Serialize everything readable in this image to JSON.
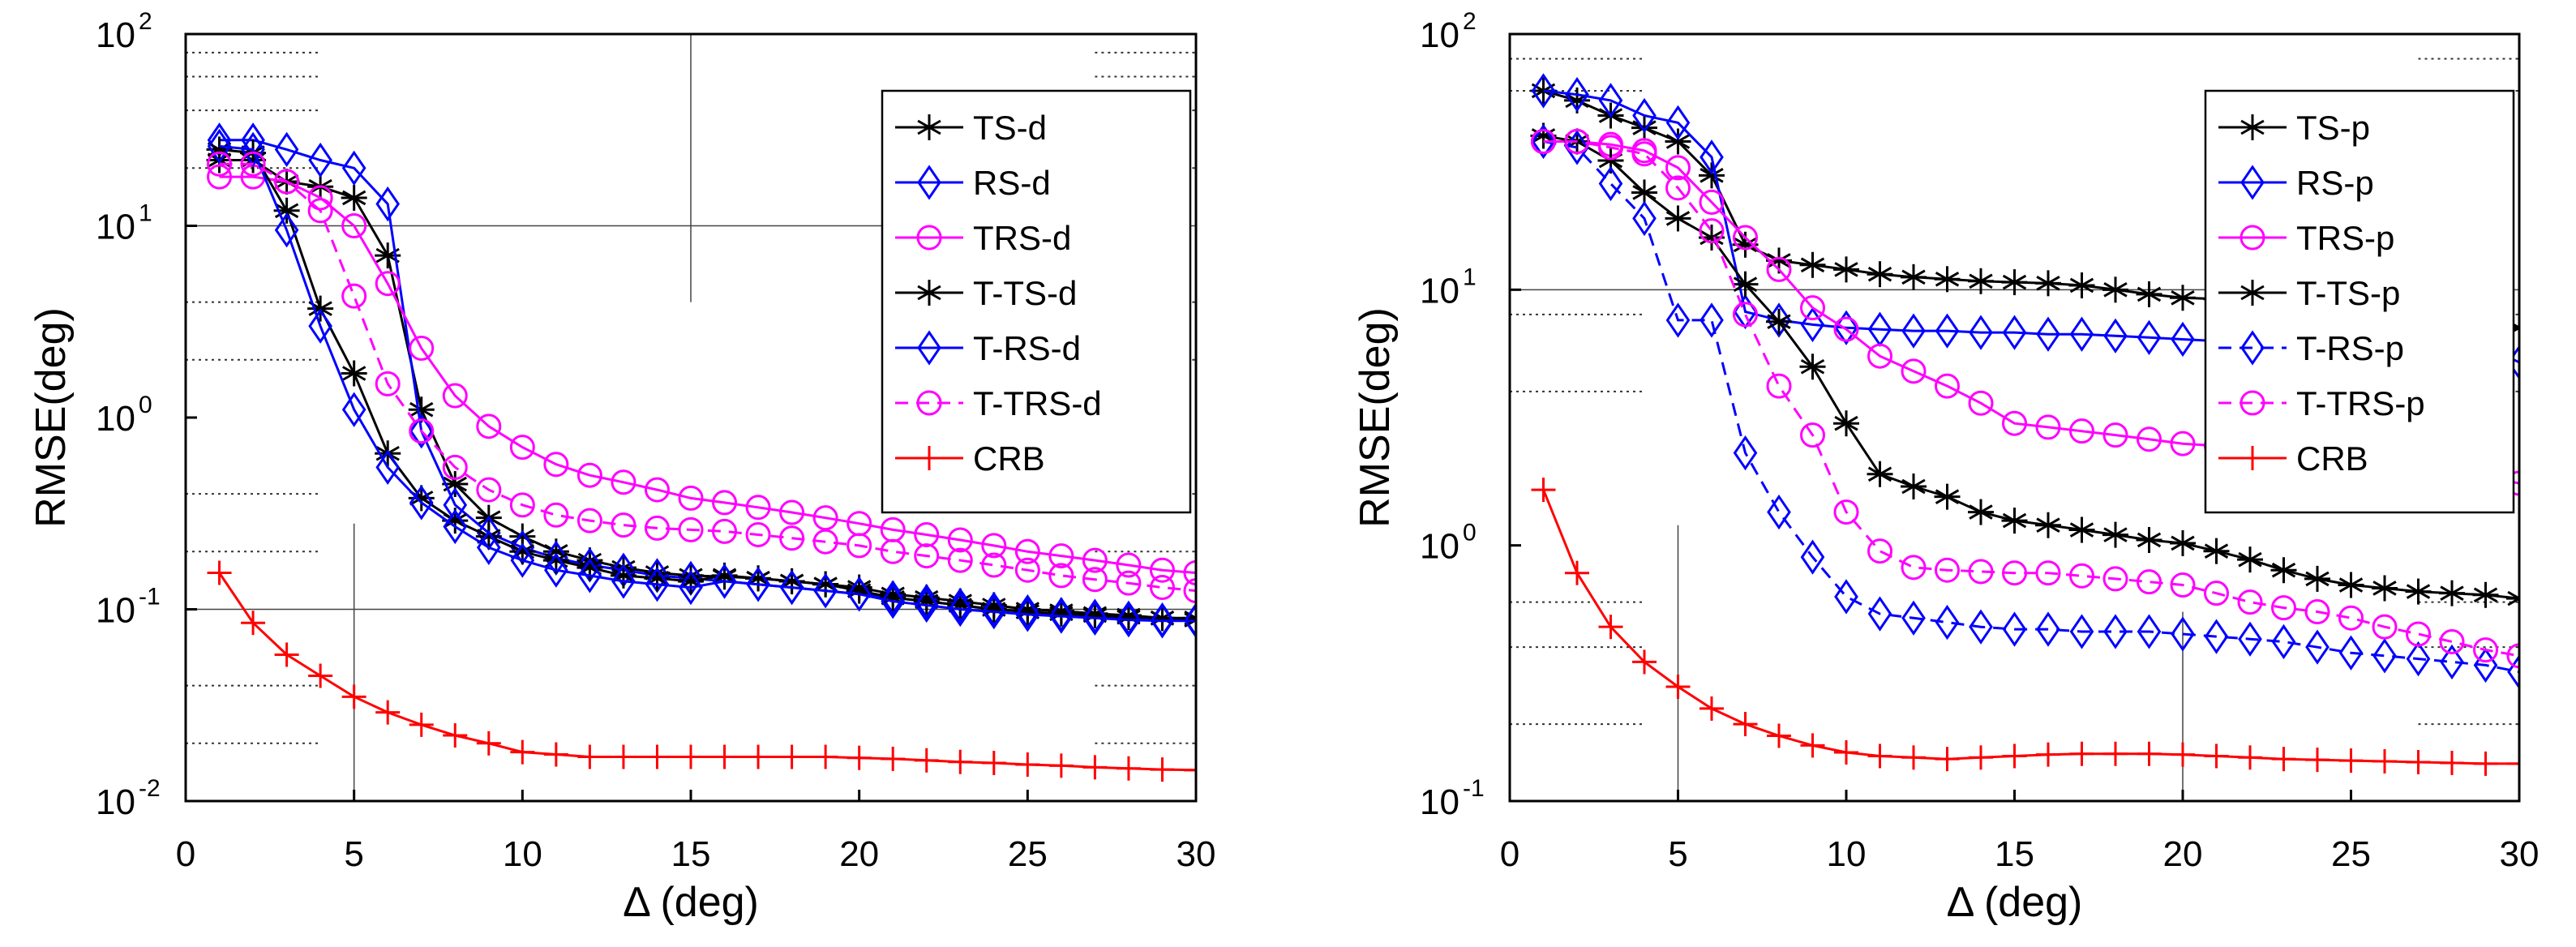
{
  "chart_data": [
    {
      "type": "line",
      "yscale": "log",
      "xlabel": "Δ (deg)",
      "ylabel": "RMSE(deg)",
      "xlim": [
        0,
        30
      ],
      "ylim": [
        0.01,
        100
      ],
      "xticks": [
        "0",
        "5",
        "10",
        "15",
        "20",
        "25",
        "30"
      ],
      "yticks": [
        {
          "base": "10",
          "exp": "-2"
        },
        {
          "base": "10",
          "exp": "-1"
        },
        {
          "base": "10",
          "exp": "0"
        },
        {
          "base": "10",
          "exp": "1"
        },
        {
          "base": "10",
          "exp": "2"
        }
      ],
      "legend_position": "top-right",
      "series": [
        {
          "name": "TS-d",
          "color": "#000000",
          "marker": "asterisk",
          "dash": "solid",
          "x": [
            1,
            2,
            3,
            4,
            5,
            6,
            7,
            8,
            9,
            10,
            11,
            12,
            13,
            14,
            15,
            16,
            17,
            18,
            19,
            20,
            21,
            22,
            23,
            24,
            25,
            26,
            27,
            28,
            29,
            30
          ],
          "values": [
            22,
            22,
            17,
            16,
            14,
            7,
            1.1,
            0.45,
            0.3,
            0.24,
            0.2,
            0.18,
            0.165,
            0.155,
            0.15,
            0.148,
            0.145,
            0.14,
            0.135,
            0.13,
            0.12,
            0.115,
            0.11,
            0.105,
            0.1,
            0.098,
            0.095,
            0.093,
            0.09,
            0.09
          ]
        },
        {
          "name": "RS-d",
          "color": "#0000ff",
          "marker": "diamond",
          "dash": "solid",
          "x": [
            1,
            2,
            3,
            4,
            5,
            6,
            7,
            8,
            9,
            10,
            11,
            12,
            13,
            14,
            15,
            16,
            17,
            18,
            19,
            20,
            21,
            22,
            23,
            24,
            25,
            26,
            27,
            28,
            29,
            30
          ],
          "values": [
            28,
            28,
            25,
            22,
            20,
            13,
            0.85,
            0.35,
            0.25,
            0.21,
            0.185,
            0.17,
            0.16,
            0.15,
            0.145,
            0.14,
            0.135,
            0.13,
            0.125,
            0.12,
            0.115,
            0.11,
            0.105,
            0.1,
            0.097,
            0.094,
            0.092,
            0.09,
            0.088,
            0.088
          ]
        },
        {
          "name": "TRS-d",
          "color": "#ff00ff",
          "marker": "circle",
          "dash": "solid",
          "x": [
            1,
            2,
            3,
            4,
            5,
            6,
            7,
            8,
            9,
            10,
            11,
            12,
            13,
            14,
            15,
            16,
            17,
            18,
            19,
            20,
            21,
            22,
            23,
            24,
            25,
            26,
            27,
            28,
            29,
            30
          ],
          "values": [
            18,
            18,
            17,
            14,
            10,
            5,
            2.3,
            1.3,
            0.9,
            0.7,
            0.57,
            0.5,
            0.46,
            0.42,
            0.38,
            0.36,
            0.34,
            0.32,
            0.3,
            0.28,
            0.26,
            0.245,
            0.23,
            0.215,
            0.2,
            0.19,
            0.18,
            0.17,
            0.16,
            0.155
          ]
        },
        {
          "name": "T-TS-d",
          "color": "#000000",
          "marker": "asterisk",
          "dash": "solid",
          "x": [
            1,
            2,
            3,
            4,
            5,
            6,
            7,
            8,
            9,
            10,
            11,
            12,
            13,
            14,
            15,
            16,
            17,
            18,
            19,
            20,
            21,
            22,
            23,
            24,
            25,
            26,
            27,
            28,
            29,
            30
          ],
          "values": [
            25,
            24,
            12,
            3.7,
            1.7,
            0.65,
            0.38,
            0.29,
            0.24,
            0.2,
            0.18,
            0.165,
            0.15,
            0.145,
            0.14,
            0.15,
            0.145,
            0.14,
            0.135,
            0.125,
            0.115,
            0.11,
            0.105,
            0.1,
            0.097,
            0.095,
            0.093,
            0.091,
            0.09,
            0.088
          ]
        },
        {
          "name": "T-RS-d",
          "color": "#0000ff",
          "marker": "diamond",
          "dash": "solid",
          "x": [
            1,
            2,
            3,
            4,
            5,
            6,
            7,
            8,
            9,
            10,
            11,
            12,
            13,
            14,
            15,
            16,
            17,
            18,
            19,
            20,
            21,
            22,
            23,
            24,
            25,
            26,
            27,
            28,
            29,
            30
          ],
          "values": [
            26,
            25,
            9.5,
            3,
            1.1,
            0.55,
            0.36,
            0.27,
            0.21,
            0.18,
            0.16,
            0.15,
            0.14,
            0.135,
            0.13,
            0.14,
            0.135,
            0.13,
            0.125,
            0.12,
            0.11,
            0.105,
            0.1,
            0.097,
            0.094,
            0.092,
            0.09,
            0.088,
            0.087,
            0.087
          ]
        },
        {
          "name": "T-TRS-d",
          "color": "#ff00ff",
          "marker": "circle",
          "dash": "dashed",
          "x": [
            1,
            2,
            3,
            4,
            5,
            6,
            7,
            8,
            9,
            10,
            11,
            12,
            13,
            14,
            15,
            16,
            17,
            18,
            19,
            20,
            21,
            22,
            23,
            24,
            25,
            26,
            27,
            28,
            29,
            30
          ],
          "values": [
            21,
            21,
            17,
            12,
            4.3,
            1.5,
            0.85,
            0.55,
            0.42,
            0.35,
            0.31,
            0.29,
            0.275,
            0.265,
            0.26,
            0.255,
            0.245,
            0.235,
            0.225,
            0.215,
            0.2,
            0.19,
            0.18,
            0.17,
            0.16,
            0.15,
            0.143,
            0.137,
            0.13,
            0.125
          ]
        },
        {
          "name": "CRB",
          "color": "#ff0000",
          "marker": "plus",
          "dash": "solid",
          "x": [
            1,
            2,
            3,
            4,
            5,
            6,
            7,
            8,
            9,
            10,
            11,
            12,
            13,
            14,
            15,
            16,
            17,
            18,
            19,
            20,
            21,
            22,
            23,
            24,
            25,
            26,
            27,
            28,
            29,
            30
          ],
          "values": [
            0.155,
            0.085,
            0.058,
            0.045,
            0.035,
            0.029,
            0.025,
            0.022,
            0.02,
            0.018,
            0.0175,
            0.017,
            0.017,
            0.017,
            0.017,
            0.017,
            0.017,
            0.017,
            0.017,
            0.0168,
            0.0166,
            0.0163,
            0.016,
            0.0158,
            0.0155,
            0.0153,
            0.015,
            0.0148,
            0.0146,
            0.0145
          ]
        }
      ]
    },
    {
      "type": "line",
      "yscale": "log",
      "xlabel": "Δ (deg)",
      "ylabel": "RMSE(deg)",
      "xlim": [
        0,
        30
      ],
      "ylim": [
        0.1,
        100
      ],
      "xticks": [
        "0",
        "5",
        "10",
        "15",
        "20",
        "25",
        "30"
      ],
      "yticks": [
        {
          "base": "10",
          "exp": "-1"
        },
        {
          "base": "10",
          "exp": "0"
        },
        {
          "base": "10",
          "exp": "1"
        },
        {
          "base": "10",
          "exp": "2"
        }
      ],
      "legend_position": "top-right",
      "series": [
        {
          "name": "TS-p",
          "color": "#000000",
          "marker": "asterisk",
          "dash": "solid",
          "x": [
            1,
            2,
            3,
            4,
            5,
            6,
            7,
            8,
            9,
            10,
            11,
            12,
            13,
            14,
            15,
            16,
            17,
            18,
            19,
            20,
            21,
            22,
            23,
            24,
            25,
            26,
            27,
            28,
            29,
            30
          ],
          "values": [
            60,
            55,
            48,
            43,
            38,
            28,
            15,
            13,
            12.5,
            12,
            11.5,
            11.2,
            11,
            10.8,
            10.7,
            10.6,
            10.4,
            10,
            9.6,
            9.3,
            9.2,
            9.1,
            9,
            8.9,
            8.8,
            8.5,
            8.2,
            7.8,
            7.4,
            7.1
          ]
        },
        {
          "name": "RS-p",
          "color": "#0000ff",
          "marker": "diamond",
          "dash": "solid",
          "x": [
            1,
            2,
            3,
            4,
            5,
            6,
            7,
            8,
            9,
            10,
            11,
            12,
            13,
            14,
            15,
            16,
            17,
            18,
            19,
            20,
            21,
            22,
            23,
            24,
            25,
            26,
            27,
            28,
            29,
            30
          ],
          "values": [
            60,
            58,
            55,
            48,
            45,
            33,
            8.2,
            7.6,
            7.3,
            7.1,
            7,
            6.9,
            6.9,
            6.8,
            6.8,
            6.7,
            6.7,
            6.6,
            6.5,
            6.4,
            6.3,
            6.3,
            6.3,
            6.3,
            6.2,
            6.2,
            6.2,
            6.1,
            6,
            5.2
          ]
        },
        {
          "name": "TRS-p",
          "color": "#ff00ff",
          "marker": "circle",
          "dash": "solid",
          "x": [
            1,
            2,
            3,
            4,
            5,
            6,
            7,
            8,
            9,
            10,
            11,
            12,
            13,
            14,
            15,
            16,
            17,
            18,
            19,
            20,
            21,
            22,
            23,
            24,
            25,
            26,
            27,
            28,
            29,
            30
          ],
          "values": [
            38,
            38,
            37,
            35,
            30,
            22,
            16,
            12,
            8.5,
            7,
            5.5,
            4.8,
            4.2,
            3.6,
            3,
            2.9,
            2.8,
            2.7,
            2.6,
            2.5,
            2.45,
            2.4,
            2.35,
            2.3,
            2.25,
            2.2,
            2.1,
            2,
            1.85,
            1.75
          ]
        },
        {
          "name": "T-TS-p",
          "color": "#000000",
          "marker": "asterisk",
          "dash": "solid",
          "x": [
            1,
            2,
            3,
            4,
            5,
            6,
            7,
            8,
            9,
            10,
            11,
            12,
            13,
            14,
            15,
            16,
            17,
            18,
            19,
            20,
            21,
            22,
            23,
            24,
            25,
            26,
            27,
            28,
            29,
            30
          ],
          "values": [
            40,
            38,
            32,
            24,
            19,
            16,
            10.5,
            7.5,
            5,
            3,
            1.9,
            1.7,
            1.55,
            1.35,
            1.25,
            1.2,
            1.15,
            1.1,
            1.05,
            1.02,
            0.95,
            0.88,
            0.8,
            0.74,
            0.7,
            0.68,
            0.66,
            0.65,
            0.64,
            0.62
          ]
        },
        {
          "name": "T-RS-p",
          "color": "#0000ff",
          "marker": "diamond",
          "dash": "dashed",
          "x": [
            1,
            2,
            3,
            4,
            5,
            6,
            7,
            8,
            9,
            10,
            11,
            12,
            13,
            14,
            15,
            16,
            17,
            18,
            19,
            20,
            21,
            22,
            23,
            24,
            25,
            26,
            27,
            28,
            29,
            30
          ],
          "values": [
            38,
            36,
            26,
            19,
            7.6,
            7.6,
            2.3,
            1.35,
            0.9,
            0.63,
            0.54,
            0.52,
            0.5,
            0.48,
            0.47,
            0.47,
            0.46,
            0.46,
            0.46,
            0.45,
            0.44,
            0.43,
            0.42,
            0.4,
            0.38,
            0.37,
            0.36,
            0.35,
            0.34,
            0.32
          ]
        },
        {
          "name": "T-TRS-p",
          "color": "#ff00ff",
          "marker": "circle",
          "dash": "dashed",
          "x": [
            1,
            2,
            3,
            4,
            5,
            6,
            7,
            8,
            9,
            10,
            11,
            12,
            13,
            14,
            15,
            16,
            17,
            18,
            19,
            20,
            21,
            22,
            23,
            24,
            25,
            26,
            27,
            28,
            29,
            30
          ],
          "values": [
            38,
            38,
            36,
            34,
            25,
            17,
            8,
            4.2,
            2.7,
            1.35,
            0.95,
            0.82,
            0.8,
            0.79,
            0.78,
            0.78,
            0.76,
            0.74,
            0.72,
            0.7,
            0.65,
            0.6,
            0.57,
            0.55,
            0.52,
            0.48,
            0.45,
            0.42,
            0.39,
            0.37
          ]
        },
        {
          "name": "CRB",
          "color": "#ff0000",
          "marker": "plus",
          "dash": "solid",
          "x": [
            1,
            2,
            3,
            4,
            5,
            6,
            7,
            8,
            9,
            10,
            11,
            12,
            13,
            14,
            15,
            16,
            17,
            18,
            19,
            20,
            21,
            22,
            23,
            24,
            25,
            26,
            27,
            28,
            29,
            30
          ],
          "values": [
            1.65,
            0.78,
            0.48,
            0.35,
            0.28,
            0.23,
            0.2,
            0.18,
            0.165,
            0.155,
            0.15,
            0.148,
            0.146,
            0.148,
            0.15,
            0.152,
            0.153,
            0.153,
            0.153,
            0.152,
            0.15,
            0.148,
            0.146,
            0.145,
            0.144,
            0.143,
            0.142,
            0.141,
            0.14,
            0.14
          ]
        }
      ]
    }
  ]
}
